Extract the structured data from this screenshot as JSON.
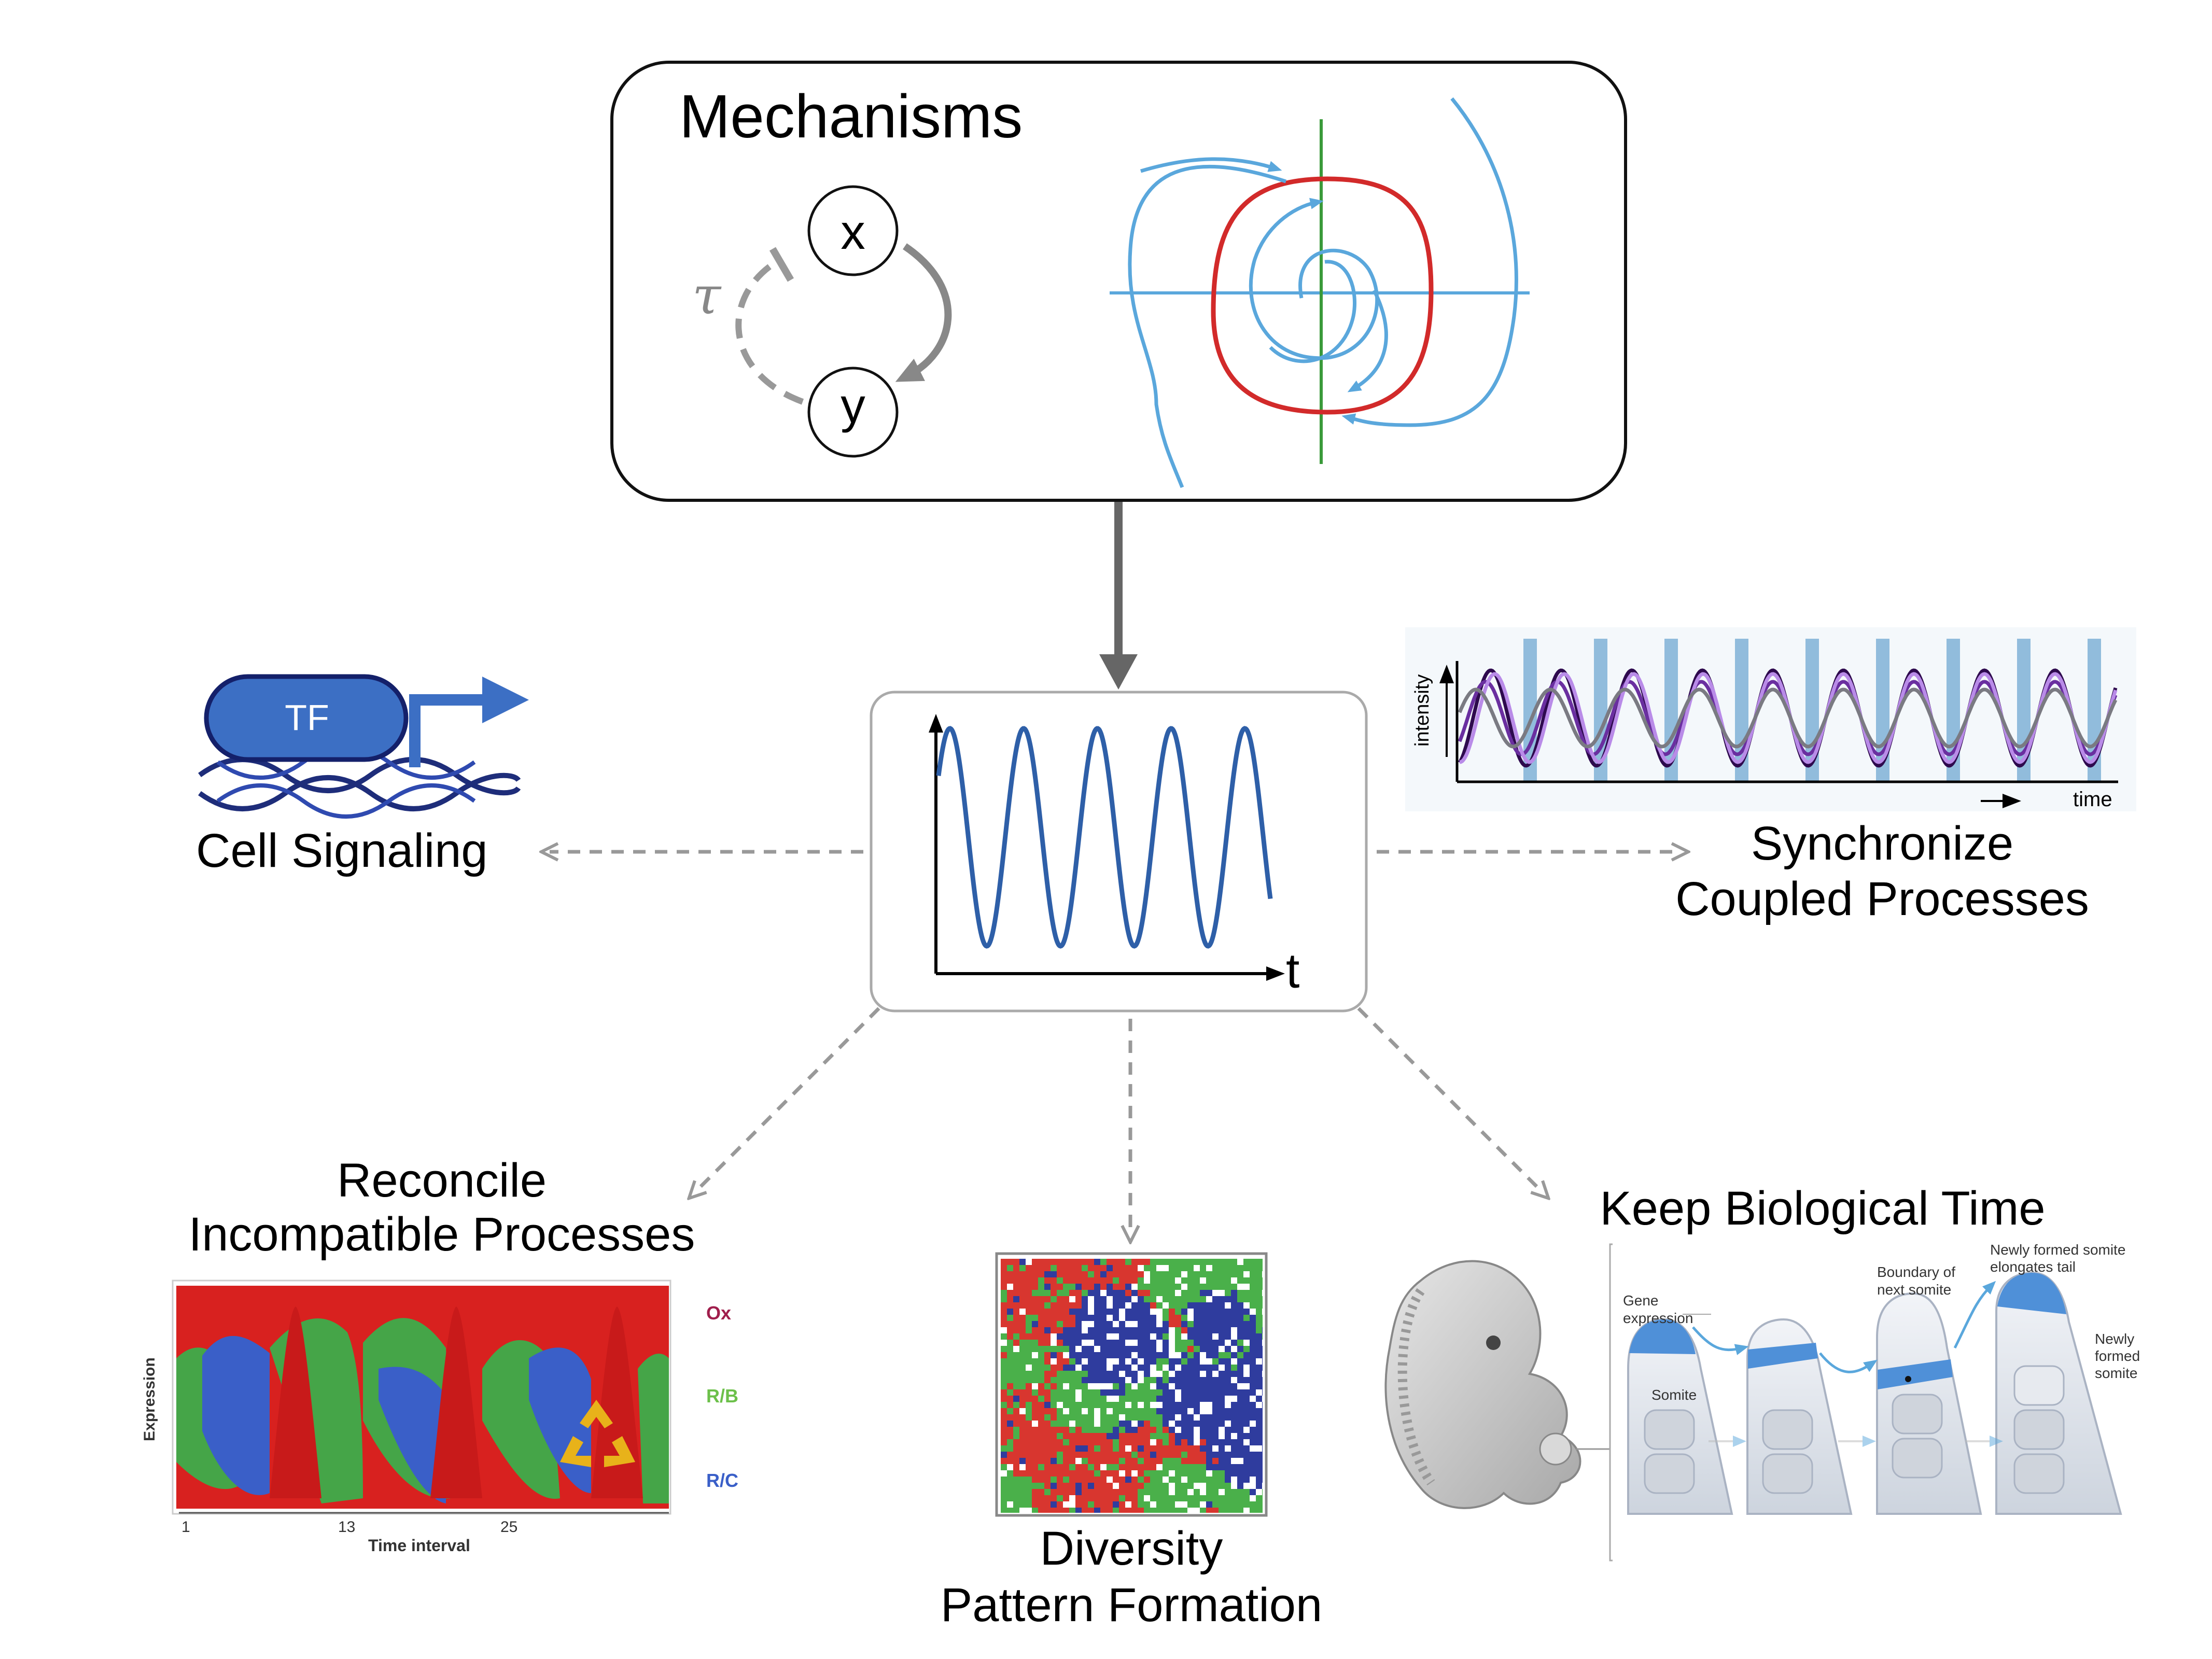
{
  "mechanisms": {
    "title": "Mechanisms",
    "node_x": "x",
    "node_y": "y",
    "delay": "τ"
  },
  "center": {
    "axis_t": "t"
  },
  "cell_signaling": {
    "tf": "TF",
    "label": "Cell Signaling"
  },
  "synchronize": {
    "line1": "Synchronize",
    "line2": "Coupled Processes",
    "ylabel": "intensity",
    "xlabel": "time"
  },
  "reconcile": {
    "line1": "Reconcile",
    "line2": "Incompatible Processes",
    "ylabel": "Expression",
    "xlabel": "Time interval",
    "ticks": [
      "1",
      "13",
      "25"
    ],
    "legend": [
      {
        "name": "Ox",
        "color": "#a01e4c"
      },
      {
        "name": "R/B",
        "color": "#6cc04a"
      },
      {
        "name": "R/C",
        "color": "#3a5fc8"
      }
    ]
  },
  "diversity": {
    "line1": "Diversity",
    "line2": "Pattern Formation"
  },
  "keep_time": {
    "title": "Keep Biological Time",
    "gene_expression_1": "Gene",
    "gene_expression_2": "expression",
    "somite": "Somite",
    "boundary_1": "Boundary of",
    "boundary_2": "next somite",
    "newly_tail_1": "Newly formed somite",
    "newly_tail_2": "elongates tail",
    "newly_1": "Newly",
    "newly_2": "formed",
    "newly_3": "somite"
  },
  "colors": {
    "blue_wave": "#2e5fa8",
    "phase_blue": "#5aa7dc",
    "phase_red": "#d22a2a",
    "phase_green": "#3a9a3a",
    "arrow_dark": "#666666",
    "arrow_dashed": "#999999"
  }
}
